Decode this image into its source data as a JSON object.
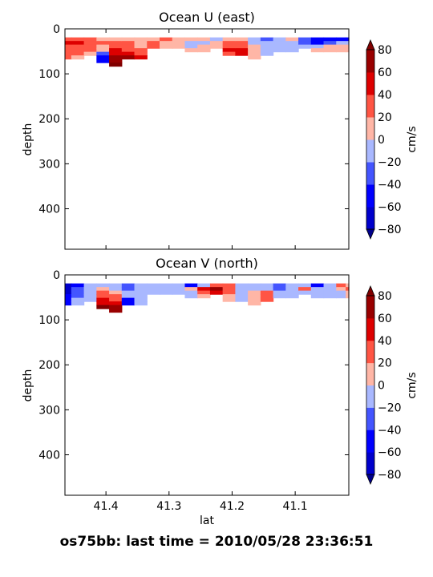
{
  "figure": {
    "suptitle": "os75bb: last time = 2010/05/28 23:36:51"
  },
  "colors": {
    "levels": [
      -80,
      -60,
      -40,
      -20,
      0,
      20,
      40,
      60,
      80
    ],
    "bands": [
      "#0000cc",
      "#0000ff",
      "#4455ff",
      "#a9b8ff",
      "#ffb6a6",
      "#ff5544",
      "#dd0000",
      "#990000"
    ],
    "under": "#00008b",
    "over": "#800000"
  },
  "chart_data": [
    {
      "type": "heatmap",
      "title": "Ocean U (east)",
      "xlabel": "",
      "ylabel": "depth",
      "xlim": [
        41.465,
        41.015
      ],
      "ylim": [
        490,
        0
      ],
      "xticks": [
        41.4,
        41.3,
        41.2,
        41.1
      ],
      "yticks": [
        0,
        100,
        200,
        300,
        400
      ],
      "show_xticklabels": false,
      "colorbar": {
        "label": "cm/s",
        "ticks": [
          -80,
          -60,
          -40,
          -20,
          0,
          20,
          40,
          60,
          80
        ],
        "extend": "both"
      },
      "depths": [
        23,
        31,
        39,
        47,
        55,
        63,
        71,
        79
      ],
      "lat": [
        41.465,
        41.445,
        41.425,
        41.405,
        41.385,
        41.365,
        41.345,
        41.325,
        41.305,
        41.285,
        41.265,
        41.245,
        41.225,
        41.205,
        41.185,
        41.165,
        41.145,
        41.125,
        41.105,
        41.085,
        41.065,
        41.045,
        41.025,
        41.015
      ],
      "max_depth": [
        63,
        63,
        55,
        71,
        79,
        63,
        63,
        39,
        39,
        39,
        47,
        47,
        39,
        55,
        55,
        63,
        55,
        47,
        47,
        39,
        47,
        47,
        47,
        47
      ],
      "values": [
        [
          25,
          35,
          30,
          15,
          10,
          5,
          10,
          15,
          20,
          10,
          5,
          0,
          -10,
          5,
          10,
          -15,
          -25,
          -10,
          5,
          -30,
          -45,
          -50,
          -60,
          -55
        ],
        [
          45,
          45,
          30,
          20,
          30,
          25,
          15,
          20,
          15,
          5,
          -5,
          -10,
          5,
          25,
          30,
          -5,
          -20,
          -5,
          -10,
          -25,
          -45,
          -30,
          -20,
          -10
        ],
        [
          35,
          30,
          25,
          15,
          25,
          20,
          15,
          25,
          10,
          0,
          -10,
          5,
          15,
          30,
          35,
          10,
          -10,
          -15,
          -20,
          -15,
          -10,
          5,
          10,
          5
        ],
        [
          30,
          25,
          20,
          10,
          45,
          30,
          25,
          55,
          10,
          5,
          0,
          10,
          20,
          40,
          40,
          15,
          -15,
          -20,
          -15,
          -10,
          5,
          10,
          15,
          10
        ],
        [
          25,
          20,
          15,
          -25,
          55,
          40,
          30,
          50,
          10,
          5,
          0,
          10,
          20,
          35,
          40,
          10,
          -15,
          -20,
          -15,
          -10,
          5,
          10,
          15,
          10
        ],
        [
          20,
          15,
          10,
          -60,
          70,
          60,
          45,
          45,
          10,
          5,
          0,
          10,
          20,
          35,
          40,
          5,
          -15,
          -20,
          -15,
          -10,
          5,
          10,
          15,
          10
        ],
        [
          15,
          10,
          5,
          -55,
          75,
          60,
          45,
          40,
          10,
          5,
          0,
          10,
          20,
          30,
          35,
          5,
          -15,
          -20,
          -15,
          -10,
          5,
          10,
          15,
          10
        ],
        [
          10,
          5,
          0,
          60,
          80,
          55,
          40,
          35,
          10,
          5,
          0,
          10,
          20,
          30,
          35,
          5,
          -15,
          -20,
          -15,
          -10,
          5,
          10,
          15,
          10
        ]
      ]
    },
    {
      "type": "heatmap",
      "title": "Ocean V (north)",
      "xlabel": "lat",
      "ylabel": "depth",
      "xlim": [
        41.465,
        41.015
      ],
      "ylim": [
        490,
        0
      ],
      "xticks": [
        41.4,
        41.3,
        41.2,
        41.1
      ],
      "yticks": [
        0,
        100,
        200,
        300,
        400
      ],
      "xticklabels": [
        "41.4",
        "41.3",
        "41.2",
        "41.1"
      ],
      "show_xticklabels": true,
      "colorbar": {
        "label": "cm/s",
        "ticks": [
          -80,
          -60,
          -40,
          -20,
          0,
          20,
          40,
          60,
          80
        ],
        "extend": "both"
      },
      "depths": [
        23,
        31,
        39,
        47,
        55,
        63,
        71,
        79
      ],
      "lat": [
        41.465,
        41.445,
        41.425,
        41.405,
        41.385,
        41.365,
        41.345,
        41.325,
        41.305,
        41.285,
        41.265,
        41.245,
        41.225,
        41.205,
        41.185,
        41.165,
        41.145,
        41.125,
        41.105,
        41.085,
        41.065,
        41.045,
        41.025,
        41.015
      ],
      "max_depth": [
        63,
        63,
        55,
        71,
        79,
        63,
        63,
        39,
        39,
        39,
        47,
        47,
        39,
        55,
        55,
        63,
        55,
        47,
        47,
        39,
        47,
        47,
        47,
        47
      ],
      "values": [
        [
          -70,
          -45,
          -20,
          -10,
          -15,
          -25,
          -20,
          -10,
          -5,
          -15,
          -60,
          -10,
          25,
          30,
          -5,
          -10,
          -15,
          -40,
          -10,
          -20,
          -45,
          -10,
          25,
          15
        ],
        [
          -70,
          -40,
          -20,
          15,
          -5,
          -30,
          -20,
          -5,
          -10,
          -5,
          15,
          40,
          60,
          20,
          -10,
          -15,
          -20,
          -30,
          -5,
          25,
          -10,
          -20,
          15,
          20
        ],
        [
          -65,
          -30,
          -15,
          20,
          10,
          -20,
          -15,
          -5,
          -10,
          -10,
          -5,
          20,
          50,
          20,
          -5,
          15,
          25,
          -15,
          -20,
          -10,
          -15,
          -10,
          -5,
          10
        ],
        [
          -60,
          -25,
          -10,
          30,
          25,
          -15,
          -15,
          -5,
          -10,
          -10,
          -5,
          10,
          30,
          15,
          -5,
          15,
          30,
          -10,
          -15,
          -10,
          -10,
          -5,
          -5,
          5
        ],
        [
          -55,
          -20,
          -5,
          40,
          35,
          -45,
          -15,
          -5,
          -10,
          -10,
          -5,
          10,
          25,
          15,
          -5,
          15,
          30,
          -10,
          -15,
          -10,
          -10,
          -5,
          -5,
          5
        ],
        [
          -50,
          -15,
          0,
          55,
          50,
          -60,
          -20,
          -5,
          -10,
          -10,
          -5,
          10,
          25,
          15,
          -5,
          10,
          25,
          -10,
          -15,
          -10,
          -10,
          -5,
          -5,
          5
        ],
        [
          -45,
          -10,
          0,
          80,
          60,
          -55,
          -20,
          -5,
          -10,
          -10,
          -5,
          10,
          25,
          15,
          -5,
          10,
          25,
          -10,
          -15,
          -10,
          -10,
          -5,
          -5,
          5
        ],
        [
          -40,
          -10,
          0,
          85,
          65,
          -50,
          -20,
          -5,
          -10,
          -10,
          -5,
          10,
          25,
          15,
          -5,
          10,
          25,
          -10,
          -15,
          -10,
          -10,
          -5,
          -5,
          5
        ]
      ]
    }
  ]
}
